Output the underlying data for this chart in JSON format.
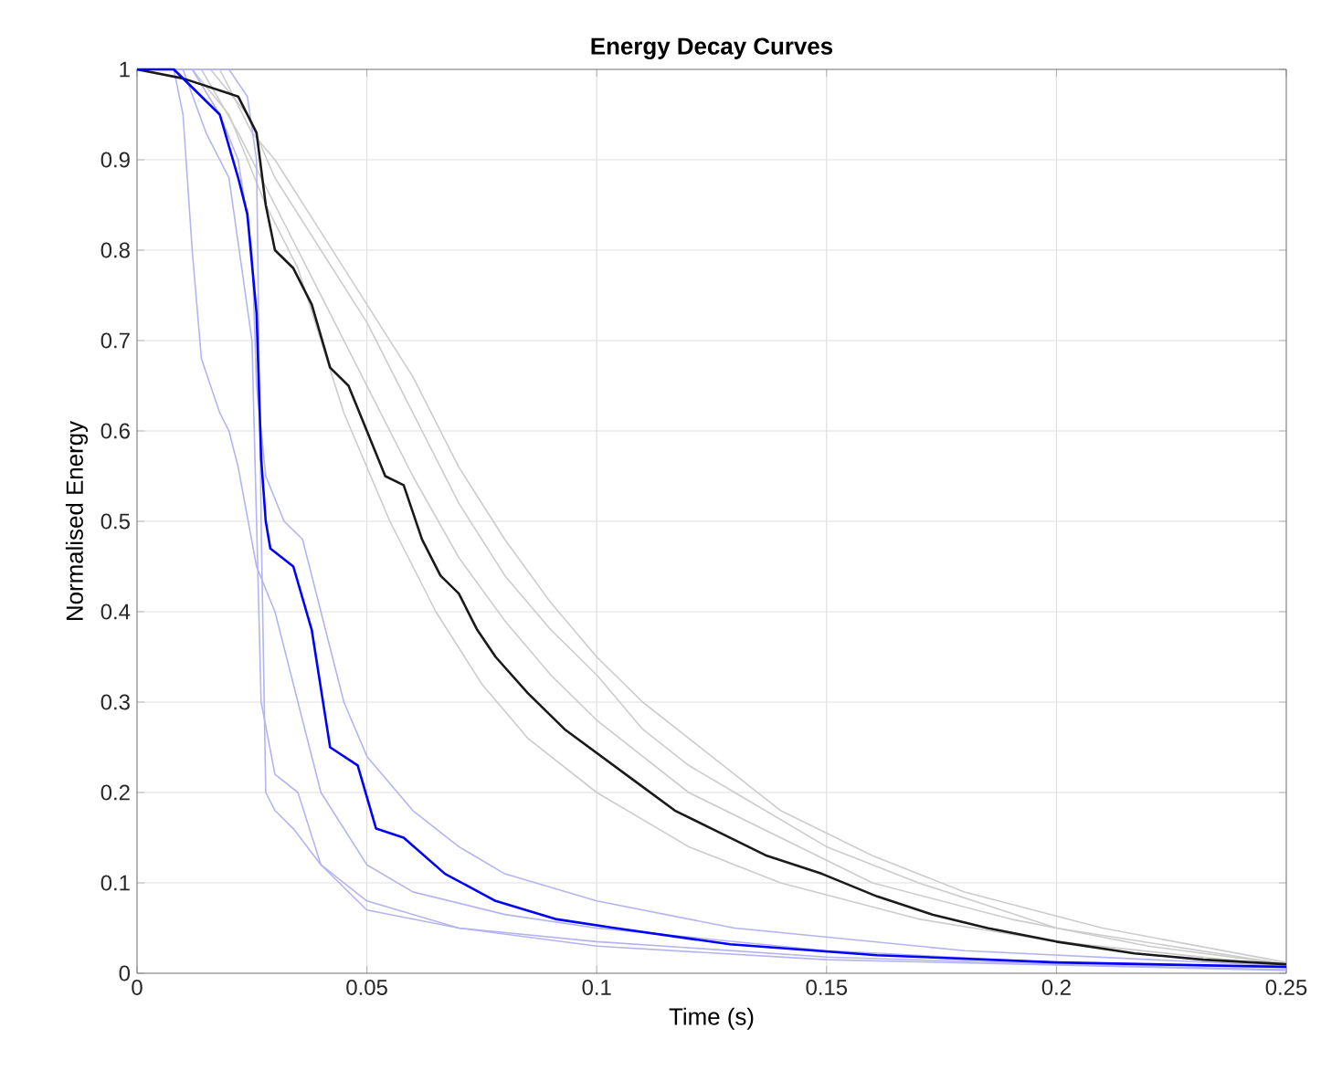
{
  "chart_data": {
    "type": "line",
    "title": "Energy Decay Curves",
    "xlabel": "Time (s)",
    "ylabel": "Normalised Energy",
    "xlim": [
      0,
      0.25
    ],
    "ylim": [
      0,
      1
    ],
    "xticks": [
      0,
      0.05,
      0.1,
      0.15,
      0.2,
      0.25
    ],
    "yticks": [
      0,
      0.1,
      0.2,
      0.3,
      0.4,
      0.5,
      0.6,
      0.7,
      0.8,
      0.9,
      1
    ],
    "grid": true,
    "line_style": "solid",
    "series": [
      {
        "color": "#cccccc",
        "x": [
          0,
          0.016,
          0.024,
          0.03,
          0.04,
          0.05,
          0.06,
          0.07,
          0.08,
          0.09,
          0.1,
          0.11,
          0.12,
          0.13,
          0.15,
          0.17,
          0.2,
          0.25
        ],
        "values": [
          1,
          1,
          0.95,
          0.88,
          0.8,
          0.72,
          0.62,
          0.52,
          0.44,
          0.38,
          0.33,
          0.27,
          0.23,
          0.2,
          0.14,
          0.1,
          0.05,
          0.01
        ]
      },
      {
        "color": "#cccccc",
        "x": [
          0,
          0.012,
          0.02,
          0.028,
          0.035,
          0.045,
          0.055,
          0.065,
          0.075,
          0.085,
          0.1,
          0.12,
          0.14,
          0.17,
          0.2,
          0.25
        ],
        "values": [
          1,
          1,
          0.95,
          0.85,
          0.78,
          0.62,
          0.5,
          0.4,
          0.32,
          0.26,
          0.2,
          0.14,
          0.1,
          0.06,
          0.035,
          0.008
        ]
      },
      {
        "color": "#cccccc",
        "x": [
          0,
          0.014,
          0.022,
          0.03,
          0.04,
          0.05,
          0.06,
          0.07,
          0.08,
          0.09,
          0.1,
          0.12,
          0.14,
          0.16,
          0.19,
          0.22,
          0.25
        ],
        "values": [
          1,
          1,
          0.93,
          0.85,
          0.75,
          0.65,
          0.55,
          0.46,
          0.39,
          0.33,
          0.28,
          0.2,
          0.15,
          0.1,
          0.06,
          0.03,
          0.01
        ]
      },
      {
        "color": "#cccccc",
        "x": [
          0,
          0.018,
          0.025,
          0.03,
          0.04,
          0.05,
          0.06,
          0.07,
          0.08,
          0.09,
          0.1,
          0.11,
          0.12,
          0.14,
          0.16,
          0.18,
          0.21,
          0.25
        ],
        "values": [
          1,
          1,
          0.93,
          0.9,
          0.82,
          0.74,
          0.66,
          0.56,
          0.48,
          0.41,
          0.35,
          0.3,
          0.26,
          0.18,
          0.13,
          0.09,
          0.05,
          0.012
        ]
      },
      {
        "color": "#b4b4f0",
        "x": [
          0,
          0.008,
          0.01,
          0.012,
          0.014,
          0.018,
          0.02,
          0.022,
          0.026,
          0.03,
          0.035,
          0.04,
          0.05,
          0.06,
          0.08,
          0.1,
          0.15,
          0.2,
          0.25
        ],
        "values": [
          1,
          1,
          0.95,
          0.8,
          0.68,
          0.62,
          0.6,
          0.56,
          0.45,
          0.4,
          0.3,
          0.2,
          0.12,
          0.09,
          0.065,
          0.05,
          0.025,
          0.012,
          0.006
        ]
      },
      {
        "color": "#b4b4f0",
        "x": [
          0,
          0.02,
          0.024,
          0.026,
          0.027,
          0.028,
          0.03,
          0.034,
          0.04,
          0.05,
          0.07,
          0.1,
          0.15,
          0.2,
          0.25
        ],
        "values": [
          1,
          1,
          0.97,
          0.9,
          0.5,
          0.2,
          0.18,
          0.16,
          0.12,
          0.08,
          0.05,
          0.035,
          0.018,
          0.01,
          0.004
        ]
      },
      {
        "color": "#b4b4f0",
        "x": [
          0,
          0.012,
          0.018,
          0.022,
          0.025,
          0.026,
          0.028,
          0.032,
          0.036,
          0.04,
          0.045,
          0.05,
          0.06,
          0.07,
          0.08,
          0.1,
          0.13,
          0.18,
          0.25
        ],
        "values": [
          1,
          1,
          0.95,
          0.9,
          0.8,
          0.65,
          0.55,
          0.5,
          0.48,
          0.4,
          0.3,
          0.24,
          0.18,
          0.14,
          0.11,
          0.08,
          0.05,
          0.025,
          0.008
        ]
      },
      {
        "color": "#b4b4f0",
        "x": [
          0,
          0.01,
          0.015,
          0.02,
          0.025,
          0.027,
          0.03,
          0.035,
          0.04,
          0.05,
          0.07,
          0.1,
          0.15,
          0.25
        ],
        "values": [
          1,
          1,
          0.93,
          0.88,
          0.7,
          0.3,
          0.22,
          0.2,
          0.12,
          0.07,
          0.05,
          0.03,
          0.015,
          0.003
        ]
      },
      {
        "color": "#1a1a1a",
        "x": [
          0,
          0.01,
          0.022,
          0.026,
          0.028,
          0.03,
          0.034,
          0.038,
          0.042,
          0.046,
          0.05,
          0.054,
          0.058,
          0.062,
          0.066,
          0.07,
          0.074,
          0.078,
          0.085,
          0.093,
          0.101,
          0.109,
          0.117,
          0.125,
          0.137,
          0.149,
          0.161,
          0.173,
          0.185,
          0.2,
          0.217,
          0.232,
          0.25
        ],
        "values": [
          1,
          0.99,
          0.97,
          0.93,
          0.85,
          0.8,
          0.78,
          0.74,
          0.67,
          0.65,
          0.6,
          0.55,
          0.54,
          0.48,
          0.44,
          0.42,
          0.38,
          0.35,
          0.31,
          0.27,
          0.24,
          0.21,
          0.18,
          0.16,
          0.13,
          0.11,
          0.085,
          0.065,
          0.05,
          0.035,
          0.022,
          0.015,
          0.01
        ]
      },
      {
        "color": "#0000ff",
        "x": [
          0,
          0.008,
          0.012,
          0.018,
          0.022,
          0.024,
          0.026,
          0.027,
          0.028,
          0.029,
          0.034,
          0.038,
          0.042,
          0.048,
          0.052,
          0.058,
          0.067,
          0.078,
          0.091,
          0.104,
          0.129,
          0.161,
          0.2,
          0.25
        ],
        "values": [
          1,
          1,
          0.98,
          0.95,
          0.88,
          0.84,
          0.73,
          0.57,
          0.5,
          0.47,
          0.45,
          0.38,
          0.25,
          0.23,
          0.16,
          0.15,
          0.11,
          0.08,
          0.06,
          0.05,
          0.032,
          0.02,
          0.012,
          0.007
        ]
      }
    ]
  }
}
